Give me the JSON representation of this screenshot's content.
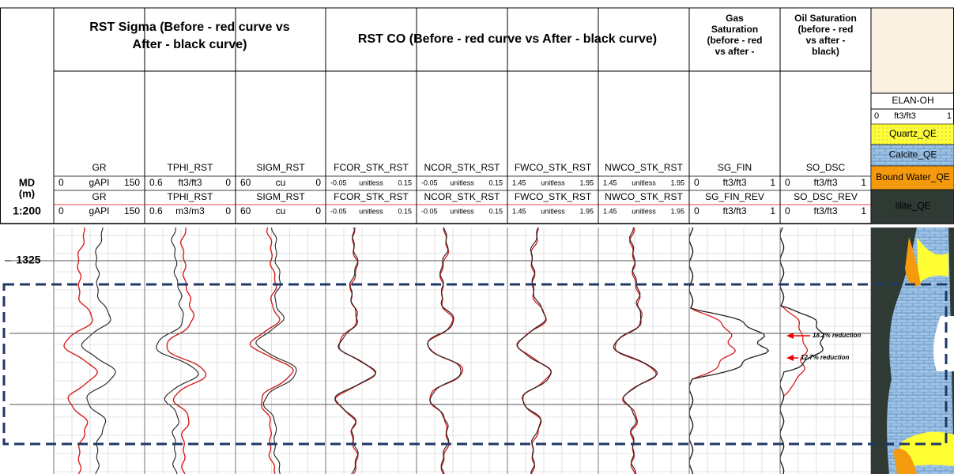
{
  "depth_track": {
    "header_line1": "MD",
    "header_line2": "(m)",
    "scale": "1:200",
    "depth_label": "1325"
  },
  "group_titles": [
    {
      "lines": [
        "RST Sigma (Before - red curve vs",
        "After - black curve)"
      ]
    },
    {
      "lines": [
        "RST CO (Before - red curve vs After - black curve)"
      ]
    },
    {
      "lines": [
        "Gas",
        "Saturation",
        "(before - red",
        "vs after -"
      ]
    },
    {
      "lines": [
        "Oil Saturation",
        "(before - red",
        "vs after -",
        "black)"
      ]
    }
  ],
  "tracks": [
    {
      "after": {
        "name": "GR",
        "min": "0",
        "unit": "gAPI",
        "max": "150"
      },
      "before": {
        "name": "GR",
        "min": "0",
        "unit": "gAPI",
        "max": "150"
      }
    },
    {
      "after": {
        "name": "TPHI_RST",
        "min": "0.6",
        "unit": "ft3/ft3",
        "max": "0"
      },
      "before": {
        "name": "TPHI_RST",
        "min": "0.6",
        "unit": "m3/m3",
        "max": "0"
      }
    },
    {
      "after": {
        "name": "SIGM_RST",
        "min": "60",
        "unit": "cu",
        "max": "0"
      },
      "before": {
        "name": "SIGM_RST",
        "min": "60",
        "unit": "cu",
        "max": "0"
      }
    },
    {
      "after": {
        "name": "FCOR_STK_RST",
        "min": "-0.05",
        "unit": "unitless",
        "max": "0.15"
      },
      "before": {
        "name": "FCOR_STK_RST",
        "min": "-0.05",
        "unit": "unitless",
        "max": "0.15"
      }
    },
    {
      "after": {
        "name": "NCOR_STK_RST",
        "min": "-0.05",
        "unit": "unitless",
        "max": "0.15"
      },
      "before": {
        "name": "NCOR_STK_RST",
        "min": "-0.05",
        "unit": "unitless",
        "max": "0.15"
      }
    },
    {
      "after": {
        "name": "FWCO_STK_RST",
        "min": "1.45",
        "unit": "unitless",
        "max": "1.95"
      },
      "before": {
        "name": "FWCO_STK_RST",
        "min": "1.45",
        "unit": "unitless",
        "max": "1.95"
      }
    },
    {
      "after": {
        "name": "NWCO_STK_RST",
        "min": "1.45",
        "unit": "unitless",
        "max": "1.95"
      },
      "before": {
        "name": "NWCO_STK_RST",
        "min": "1.45",
        "unit": "unitless",
        "max": "1.95"
      }
    },
    {
      "after": {
        "name": "SG_FIN",
        "min": "0",
        "unit": "ft3/ft3",
        "max": "1"
      },
      "before": {
        "name": "SG_FIN_REV",
        "min": "0",
        "unit": "ft3/ft3",
        "max": "1"
      }
    },
    {
      "after": {
        "name": "SO_DSC",
        "min": "0",
        "unit": "ft3/ft3",
        "max": "1"
      },
      "before": {
        "name": "SO_DSC_REV",
        "min": "0",
        "unit": "ft3/ft3",
        "max": "1"
      }
    }
  ],
  "elan": {
    "title": "ELAN-OH",
    "min": "0",
    "unit": "ft3/ft3",
    "max": "1",
    "legend": [
      "Quartz_QE",
      "Calcite_QE",
      "Bound Water_QE",
      "Illite_QE"
    ]
  },
  "annotations": [
    "18.2% reduction",
    "12.7% reduction"
  ]
}
